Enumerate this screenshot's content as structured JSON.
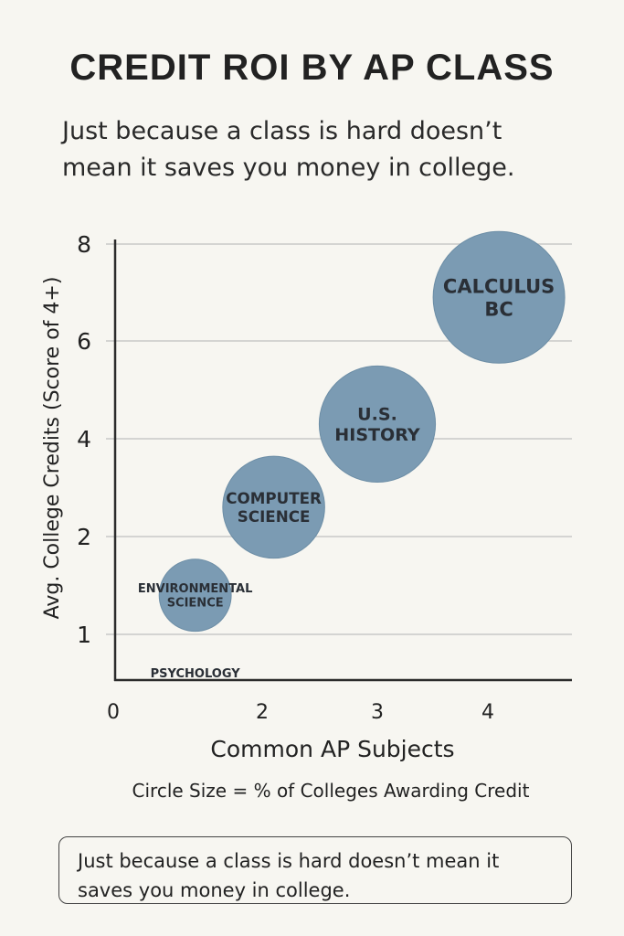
{
  "title": "CREDIT ROI BY AP CLASS",
  "subtitle": "Just because a class is hard doesn’t mean it saves you money in college.",
  "note": "Just because a class is hard doesn’t mean it saves you money in college.",
  "colors": {
    "bubble": "#7b9bb3",
    "bubble_edge": "#6d8ea6",
    "grid": "#c8c8c8",
    "axis": "#2b2b2b"
  },
  "chart_data": {
    "type": "scatter",
    "xlabel": "Common AP Subjects",
    "ylabel": "Avg. College Credits (Score of 4+)",
    "caption": "Circle Size = % of Colleges Awarding Credit",
    "x_ticks": [
      {
        "label": "0",
        "x": 0
      },
      {
        "label": "2",
        "x": 2
      },
      {
        "label": "3",
        "x": 3
      },
      {
        "label": "4",
        "x": 4
      }
    ],
    "y_ticks": [
      {
        "label": "1",
        "y": 1
      },
      {
        "label": "2",
        "y": 2
      },
      {
        "label": "4",
        "y": 4
      },
      {
        "label": "6",
        "y": 6
      },
      {
        "label": "8",
        "y": 8
      }
    ],
    "points": [
      {
        "name": "PSYCHOLOGY",
        "lines": [
          "PSYCHOLOGY"
        ],
        "x": 1.1,
        "y": 0.6,
        "size": 0
      },
      {
        "name": "ENVIRONMENTAL SCIENCE",
        "lines": [
          "ENVIRONMENTAL",
          "SCIENCE"
        ],
        "x": 1.1,
        "y": 1.4,
        "size": 15
      },
      {
        "name": "COMPUTER SCIENCE",
        "lines": [
          "COMPUTER",
          "SCIENCE"
        ],
        "x": 2.1,
        "y": 2.6,
        "size": 30
      },
      {
        "name": "U.S. HISTORY",
        "lines": [
          "U.S.",
          "HISTORY"
        ],
        "x": 3.0,
        "y": 4.3,
        "size": 39
      },
      {
        "name": "CALCULUS BC",
        "lines": [
          "CALCULUS",
          "BC"
        ],
        "x": 4.1,
        "y": 6.9,
        "size": 50
      }
    ]
  }
}
